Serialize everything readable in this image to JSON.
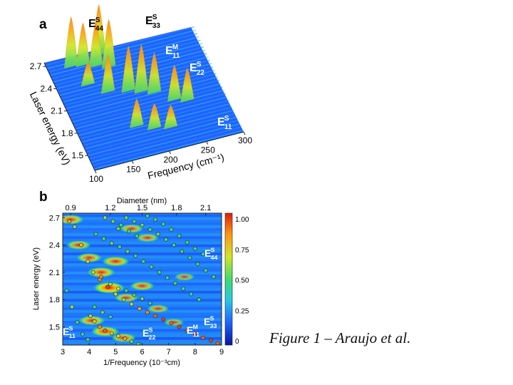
{
  "caption": "Figure 1 – Araujo et al.",
  "panel_a": {
    "letter": "a",
    "peak_labels": [
      {
        "name": "E",
        "sup": "S",
        "sub": "44"
      },
      {
        "name": "E",
        "sup": "S",
        "sub": "33"
      },
      {
        "name": "E",
        "sup": "M",
        "sub": "11"
      },
      {
        "name": "E",
        "sup": "S",
        "sub": "22"
      },
      {
        "name": "E",
        "sup": "S",
        "sub": "11"
      }
    ]
  },
  "panel_b": {
    "letter": "b",
    "transition_labels": [
      {
        "name": "E",
        "sup": "S",
        "sub": "44"
      },
      {
        "name": "E",
        "sup": "S",
        "sub": "11"
      },
      {
        "name": "E",
        "sup": "S",
        "sub": "22"
      },
      {
        "name": "E",
        "sup": "M",
        "sub": "11"
      },
      {
        "name": "E",
        "sup": "S",
        "sub": "33"
      }
    ]
  },
  "colors": {
    "colormap": [
      "#0a14a0",
      "#1e64ff",
      "#28c8e6",
      "#3cdc6e",
      "#d2e628",
      "#ff9614",
      "#dc1e0a"
    ],
    "label_on_map": "#ffffff",
    "point_stroke": "#333333"
  },
  "chart_data": [
    {
      "type": "area",
      "subtype": "3d-waterfall",
      "xlabel": "Frequency (cm⁻¹)",
      "ylabel": "Laser energy (eV)",
      "x_ticks": [
        100,
        150,
        200,
        250,
        300
      ],
      "y_ticks": [
        1.5,
        1.8,
        2.1,
        2.4,
        2.7
      ],
      "xlim": [
        100,
        300
      ],
      "ylim": [
        1.3,
        2.75
      ],
      "peaks": [
        {
          "freq": 130,
          "energy": 2.62,
          "height": 1.0
        },
        {
          "freq": 145,
          "energy": 2.6,
          "height": 0.85
        },
        {
          "freq": 160,
          "energy": 2.55,
          "height": 0.9
        },
        {
          "freq": 175,
          "energy": 2.5,
          "height": 0.95
        },
        {
          "freq": 170,
          "energy": 2.68,
          "height": 1.0
        },
        {
          "freq": 160,
          "energy": 2.2,
          "height": 0.75
        },
        {
          "freq": 185,
          "energy": 2.15,
          "height": 0.9
        },
        {
          "freq": 200,
          "energy": 2.1,
          "height": 0.95
        },
        {
          "freq": 215,
          "energy": 2.05,
          "height": 0.8
        },
        {
          "freq": 235,
          "energy": 1.9,
          "height": 0.7
        },
        {
          "freq": 250,
          "energy": 1.85,
          "height": 0.65
        },
        {
          "freq": 175,
          "energy": 1.7,
          "height": 0.55
        },
        {
          "freq": 195,
          "energy": 1.62,
          "height": 0.5
        },
        {
          "freq": 215,
          "energy": 1.58,
          "height": 0.45
        },
        {
          "freq": 140,
          "energy": 2.35,
          "height": 0.45
        }
      ]
    },
    {
      "type": "heatmap",
      "xlabel": "1/Frequency (10⁻³cm)",
      "ylabel": "Laser energy (eV)",
      "top_label": "Diameter (nm)",
      "x_ticks": [
        3,
        4,
        5,
        6,
        7,
        8,
        9
      ],
      "y_ticks": [
        1.5,
        1.8,
        2.1,
        2.4,
        2.7
      ],
      "top_ticks": [
        0.9,
        1.2,
        1.5,
        1.8,
        2.1
      ],
      "top_tick_positions": [
        3.3,
        4.8,
        6.0,
        7.3,
        8.4
      ],
      "xlim": [
        3,
        9
      ],
      "ylim": [
        1.3,
        2.75
      ],
      "colorbar_ticks": [
        "1.00",
        "0.75",
        "0.50",
        "0.25",
        "0"
      ],
      "colorbar_lim": [
        0,
        1
      ],
      "hot_spots": [
        {
          "x": 4.75,
          "y": 1.93,
          "intensity": 1.0
        },
        {
          "x": 4.45,
          "y": 2.1,
          "intensity": 0.8
        },
        {
          "x": 5.0,
          "y": 2.22,
          "intensity": 0.75
        },
        {
          "x": 5.4,
          "y": 1.82,
          "intensity": 0.55
        },
        {
          "x": 4.1,
          "y": 1.57,
          "intensity": 0.7
        },
        {
          "x": 4.6,
          "y": 1.45,
          "intensity": 0.8
        },
        {
          "x": 5.3,
          "y": 1.38,
          "intensity": 0.6
        },
        {
          "x": 6.0,
          "y": 1.95,
          "intensity": 0.6
        },
        {
          "x": 6.6,
          "y": 1.7,
          "intensity": 0.45
        },
        {
          "x": 7.2,
          "y": 1.55,
          "intensity": 0.35
        },
        {
          "x": 5.6,
          "y": 2.58,
          "intensity": 0.55
        },
        {
          "x": 6.2,
          "y": 2.48,
          "intensity": 0.5
        },
        {
          "x": 3.3,
          "y": 2.68,
          "intensity": 0.7
        },
        {
          "x": 3.6,
          "y": 2.4,
          "intensity": 0.6
        },
        {
          "x": 4.0,
          "y": 2.26,
          "intensity": 0.65
        },
        {
          "x": 7.6,
          "y": 2.05,
          "intensity": 0.35
        }
      ],
      "points": [
        {
          "x": 3.25,
          "y": 2.66,
          "v": 0.8
        },
        {
          "x": 3.45,
          "y": 2.6,
          "v": 0.6
        },
        {
          "x": 3.7,
          "y": 2.4,
          "v": 0.75
        },
        {
          "x": 3.95,
          "y": 2.22,
          "v": 0.7
        },
        {
          "x": 4.15,
          "y": 2.1,
          "v": 0.65
        },
        {
          "x": 4.4,
          "y": 2.02,
          "v": 0.85
        },
        {
          "x": 4.7,
          "y": 1.94,
          "v": 0.95
        },
        {
          "x": 5.0,
          "y": 1.86,
          "v": 0.7
        },
        {
          "x": 5.3,
          "y": 1.8,
          "v": 0.6
        },
        {
          "x": 5.6,
          "y": 1.75,
          "v": 0.7
        },
        {
          "x": 5.9,
          "y": 1.7,
          "v": 0.8
        },
        {
          "x": 6.2,
          "y": 1.66,
          "v": 0.85
        },
        {
          "x": 6.5,
          "y": 1.62,
          "v": 0.9
        },
        {
          "x": 6.8,
          "y": 1.58,
          "v": 0.95
        },
        {
          "x": 7.1,
          "y": 1.54,
          "v": 0.9
        },
        {
          "x": 7.4,
          "y": 1.5,
          "v": 0.95
        },
        {
          "x": 7.7,
          "y": 1.46,
          "v": 0.9
        },
        {
          "x": 8.0,
          "y": 1.42,
          "v": 0.95
        },
        {
          "x": 8.3,
          "y": 1.38,
          "v": 0.9
        },
        {
          "x": 8.6,
          "y": 1.35,
          "v": 0.95
        },
        {
          "x": 8.85,
          "y": 1.32,
          "v": 0.9
        },
        {
          "x": 4.45,
          "y": 2.05,
          "v": 0.85
        },
        {
          "x": 4.8,
          "y": 1.97,
          "v": 0.6
        },
        {
          "x": 5.1,
          "y": 1.92,
          "v": 0.7
        },
        {
          "x": 5.4,
          "y": 1.9,
          "v": 0.45
        },
        {
          "x": 5.7,
          "y": 1.85,
          "v": 0.5
        },
        {
          "x": 6.0,
          "y": 1.81,
          "v": 0.55
        },
        {
          "x": 6.3,
          "y": 1.76,
          "v": 0.4
        },
        {
          "x": 3.15,
          "y": 1.9,
          "v": 0.4
        },
        {
          "x": 3.35,
          "y": 1.72,
          "v": 0.6
        },
        {
          "x": 3.55,
          "y": 1.55,
          "v": 0.45
        },
        {
          "x": 3.75,
          "y": 1.42,
          "v": 0.4
        },
        {
          "x": 3.95,
          "y": 1.36,
          "v": 0.5
        },
        {
          "x": 4.05,
          "y": 1.62,
          "v": 0.6
        },
        {
          "x": 4.2,
          "y": 1.56,
          "v": 0.7
        },
        {
          "x": 4.4,
          "y": 1.5,
          "v": 0.85
        },
        {
          "x": 4.6,
          "y": 1.46,
          "v": 0.9
        },
        {
          "x": 4.85,
          "y": 1.43,
          "v": 0.75
        },
        {
          "x": 5.1,
          "y": 1.4,
          "v": 0.7
        },
        {
          "x": 5.35,
          "y": 1.37,
          "v": 0.8
        },
        {
          "x": 5.6,
          "y": 1.34,
          "v": 0.55
        },
        {
          "x": 5.85,
          "y": 1.31,
          "v": 0.5
        },
        {
          "x": 4.2,
          "y": 1.72,
          "v": 0.5
        },
        {
          "x": 4.5,
          "y": 1.66,
          "v": 0.55
        },
        {
          "x": 4.8,
          "y": 1.61,
          "v": 0.4
        },
        {
          "x": 4.25,
          "y": 2.52,
          "v": 0.45
        },
        {
          "x": 4.55,
          "y": 2.47,
          "v": 0.5
        },
        {
          "x": 4.85,
          "y": 2.42,
          "v": 0.55
        },
        {
          "x": 5.15,
          "y": 2.38,
          "v": 0.5
        },
        {
          "x": 5.45,
          "y": 2.33,
          "v": 0.55
        },
        {
          "x": 5.75,
          "y": 2.28,
          "v": 0.45
        },
        {
          "x": 6.05,
          "y": 2.22,
          "v": 0.5
        },
        {
          "x": 6.35,
          "y": 2.16,
          "v": 0.45
        },
        {
          "x": 6.65,
          "y": 2.1,
          "v": 0.5
        },
        {
          "x": 6.95,
          "y": 2.04,
          "v": 0.45
        },
        {
          "x": 7.25,
          "y": 1.98,
          "v": 0.5
        },
        {
          "x": 7.55,
          "y": 1.92,
          "v": 0.45
        },
        {
          "x": 7.85,
          "y": 1.86,
          "v": 0.4
        },
        {
          "x": 8.15,
          "y": 1.8,
          "v": 0.45
        },
        {
          "x": 5.4,
          "y": 2.7,
          "v": 0.55
        },
        {
          "x": 5.7,
          "y": 2.66,
          "v": 0.5
        },
        {
          "x": 6.0,
          "y": 2.62,
          "v": 0.55
        },
        {
          "x": 6.3,
          "y": 2.57,
          "v": 0.5
        },
        {
          "x": 6.6,
          "y": 2.52,
          "v": 0.55
        },
        {
          "x": 6.9,
          "y": 2.46,
          "v": 0.5
        },
        {
          "x": 7.2,
          "y": 2.4,
          "v": 0.45
        },
        {
          "x": 7.5,
          "y": 2.33,
          "v": 0.5
        },
        {
          "x": 7.8,
          "y": 2.26,
          "v": 0.45
        },
        {
          "x": 8.1,
          "y": 2.19,
          "v": 0.5
        },
        {
          "x": 8.4,
          "y": 2.12,
          "v": 0.45
        },
        {
          "x": 8.7,
          "y": 2.05,
          "v": 0.5
        },
        {
          "x": 6.2,
          "y": 2.72,
          "v": 0.45
        },
        {
          "x": 6.5,
          "y": 2.68,
          "v": 0.5
        },
        {
          "x": 6.8,
          "y": 2.63,
          "v": 0.45
        },
        {
          "x": 7.1,
          "y": 2.57,
          "v": 0.5
        },
        {
          "x": 7.4,
          "y": 2.5,
          "v": 0.45
        },
        {
          "x": 7.7,
          "y": 2.43,
          "v": 0.5
        },
        {
          "x": 8.0,
          "y": 2.36,
          "v": 0.45
        },
        {
          "x": 8.3,
          "y": 2.3,
          "v": 0.4
        },
        {
          "x": 4.6,
          "y": 2.7,
          "v": 0.6
        },
        {
          "x": 4.9,
          "y": 2.66,
          "v": 0.55
        },
        {
          "x": 5.2,
          "y": 2.62,
          "v": 0.5
        },
        {
          "x": 5.5,
          "y": 2.55,
          "v": 0.45
        },
        {
          "x": 5.8,
          "y": 2.5,
          "v": 0.5
        },
        {
          "x": 5.1,
          "y": 2.58,
          "v": 0.55
        }
      ]
    }
  ]
}
